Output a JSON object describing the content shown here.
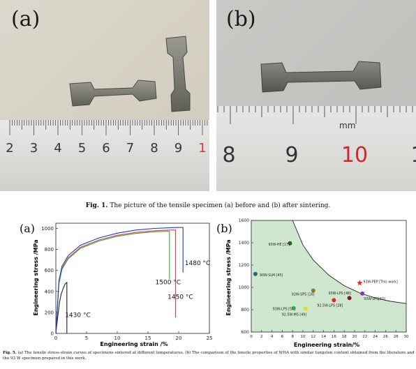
{
  "figure1": {
    "panel_a_label": "(a)",
    "panel_b_label": "(b)",
    "ruler_a_numbers": [
      "2",
      "3",
      "4",
      "5",
      "6",
      "7",
      "8",
      "9",
      "1"
    ],
    "ruler_b_numbers": [
      "8",
      "9",
      "10",
      "1"
    ],
    "ruler_b_unit": "mm",
    "caption_label": "Fig. 1.",
    "caption_text": "The picture of the tensile specimen (a) before and (b) after sintering."
  },
  "figure5": {
    "panel_a_label": "(a)",
    "panel_b_label": "(b)",
    "caption_label": "Fig. 5.",
    "caption_text": "(a) The tensile stress-strain curves of specimens sintered at different temperatures. (b) The comparison of the tensile properties of WHA with similar tungsten content obtained from the literature and the 93 W specimen prepared in this work."
  },
  "chart_data": [
    {
      "type": "line",
      "xlabel": "Engineering strain /%",
      "ylabel": "Engineering stress /MPa",
      "xlim": [
        0,
        25
      ],
      "ylim": [
        0,
        1050
      ],
      "x_ticks": [
        "0",
        "5",
        "10",
        "15",
        "20",
        "25"
      ],
      "y_ticks": [
        "0",
        "200",
        "400",
        "600",
        "800",
        "1000"
      ],
      "series": [
        {
          "name": "1430 °C",
          "color": "#222222",
          "points": [
            [
              0,
              0
            ],
            [
              0.3,
              150
            ],
            [
              0.6,
              300
            ],
            [
              0.9,
              380
            ],
            [
              1.2,
              430
            ],
            [
              1.5,
              470
            ],
            [
              1.8,
              486
            ],
            [
              1.8,
              0
            ]
          ]
        },
        {
          "name": "1450 °C",
          "color": "#ee3344",
          "points": [
            [
              0,
              0
            ],
            [
              0.5,
              480
            ],
            [
              1,
              620
            ],
            [
              2,
              720
            ],
            [
              4,
              820
            ],
            [
              7,
              890
            ],
            [
              10,
              935
            ],
            [
              13,
              962
            ],
            [
              16,
              978
            ],
            [
              18.5,
              985
            ],
            [
              19.5,
              985
            ],
            [
              19.5,
              150
            ]
          ]
        },
        {
          "name": "1500 °C",
          "color": "#33aa33",
          "points": [
            [
              0,
              0
            ],
            [
              0.5,
              470
            ],
            [
              1,
              610
            ],
            [
              2,
              710
            ],
            [
              4,
              810
            ],
            [
              7,
              880
            ],
            [
              10,
              925
            ],
            [
              13,
              952
            ],
            [
              16,
              968
            ],
            [
              18,
              972
            ],
            [
              18.5,
              972
            ],
            [
              18.5,
              520
            ]
          ]
        },
        {
          "name": "1480 °C",
          "color": "#2233cc",
          "points": [
            [
              0,
              0
            ],
            [
              0.5,
              500
            ],
            [
              1,
              640
            ],
            [
              2,
              740
            ],
            [
              4,
              840
            ],
            [
              7,
              910
            ],
            [
              10,
              955
            ],
            [
              13,
              985
            ],
            [
              16,
              1000
            ],
            [
              19,
              1008
            ],
            [
              20.7,
              1010
            ],
            [
              20.7,
              580
            ]
          ]
        }
      ],
      "annotations": [
        "1480 °C",
        "1500 °C",
        "1450 °C",
        "1430 °C"
      ],
      "panel_label": "(a)"
    },
    {
      "type": "scatter",
      "xlabel": "Engineering strain/%",
      "ylabel": "Engineering stress /MPa",
      "xlim": [
        0,
        30
      ],
      "ylim": [
        600,
        1600
      ],
      "x_ticks": [
        "0",
        "2",
        "4",
        "6",
        "8",
        "10",
        "12",
        "14",
        "16",
        "18",
        "20",
        "22",
        "24",
        "26",
        "28",
        "30"
      ],
      "y_ticks": [
        "600",
        "800",
        "1000",
        "1200",
        "1400",
        "1600"
      ],
      "points": [
        {
          "label": "93W-HE [17]",
          "x": 7.5,
          "y": 1395,
          "color": "#1f6f1f"
        },
        {
          "label": "90W-SLM [45]",
          "x": 0.8,
          "y": 1120,
          "color": "#1a6f7a"
        },
        {
          "label": "92W-SPS [16]",
          "x": 12,
          "y": 972,
          "color": "#8a7a2a"
        },
        {
          "label": "93W-LPS [48]",
          "x": 19,
          "y": 905,
          "color": "#7a1a2a"
        },
        {
          "label": "92.5W-LPS [28]",
          "x": 16,
          "y": 885,
          "color": "#ee2222"
        },
        {
          "label": "93W-LPS [51]",
          "x": 8.2,
          "y": 815,
          "color": "#44bb44"
        },
        {
          "label": "92.5W-MS [49]",
          "x": 10.5,
          "y": 810,
          "color": "#dddd22"
        },
        {
          "label": "93W-LPS[50]",
          "x": 21.5,
          "y": 945,
          "color": "#8833aa"
        },
        {
          "label": "93W-PEP [This work]",
          "x": 21,
          "y": 1040,
          "color": "#ee2222",
          "marker": "star"
        }
      ],
      "boundary_curve": [
        [
          8,
          1600
        ],
        [
          10,
          1380
        ],
        [
          12,
          1245
        ],
        [
          15,
          1110
        ],
        [
          18,
          1015
        ],
        [
          21,
          950
        ],
        [
          24,
          905
        ],
        [
          27,
          875
        ],
        [
          30,
          855
        ]
      ],
      "panel_label": "(b)"
    }
  ]
}
